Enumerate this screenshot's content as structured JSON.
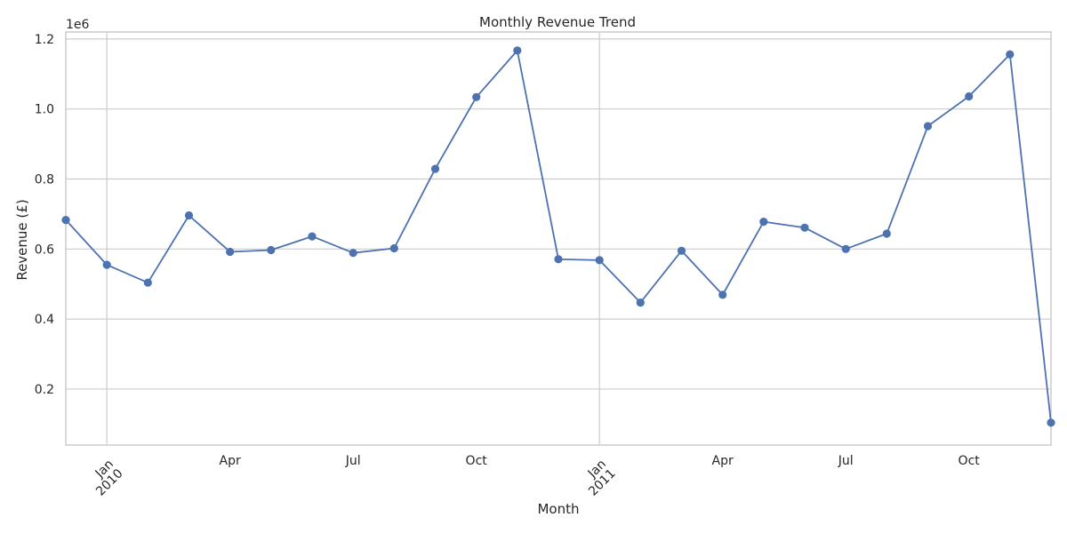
{
  "chart_data": {
    "type": "line",
    "title": "Monthly Revenue Trend",
    "xlabel": "Month",
    "ylabel": "Revenue (£)",
    "y_offset_label": "1e6",
    "ylim": [
      0.04,
      1.22
    ],
    "xlim": [
      "2009-12",
      "2011-12"
    ],
    "y_ticks": [
      0.2,
      0.4,
      0.6,
      0.8,
      1.0,
      1.2
    ],
    "y_tick_labels": [
      "0.2",
      "0.4",
      "0.6",
      "0.8",
      "1.0",
      "1.2"
    ],
    "x_ticks": [
      {
        "x": "2010-01",
        "label": "Jan\n2010",
        "major": true
      },
      {
        "x": "2010-04",
        "label": "Apr",
        "major": false
      },
      {
        "x": "2010-07",
        "label": "Jul",
        "major": false
      },
      {
        "x": "2010-10",
        "label": "Oct",
        "major": false
      },
      {
        "x": "2011-01",
        "label": "Jan\n2011",
        "major": true
      },
      {
        "x": "2011-04",
        "label": "Apr",
        "major": false
      },
      {
        "x": "2011-07",
        "label": "Jul",
        "major": false
      },
      {
        "x": "2011-10",
        "label": "Oct",
        "major": false
      }
    ],
    "grid": true,
    "series": [
      {
        "color": "#4c72b0",
        "marker": "circle",
        "x": [
          "2009-12",
          "2010-01",
          "2010-02",
          "2010-03",
          "2010-04",
          "2010-05",
          "2010-06",
          "2010-07",
          "2010-08",
          "2010-09",
          "2010-10",
          "2010-11",
          "2010-12",
          "2011-01",
          "2011-02",
          "2011-03",
          "2011-04",
          "2011-05",
          "2011-06",
          "2011-07",
          "2011-08",
          "2011-09",
          "2011-10",
          "2011-11",
          "2011-12"
        ],
        "values": [
          0.683,
          0.555,
          0.504,
          0.696,
          0.592,
          0.597,
          0.636,
          0.589,
          0.602,
          0.829,
          1.034,
          1.167,
          0.571,
          0.568,
          0.447,
          0.595,
          0.469,
          0.678,
          0.661,
          0.6,
          0.644,
          0.951,
          1.036,
          1.156,
          0.104
        ]
      }
    ]
  }
}
